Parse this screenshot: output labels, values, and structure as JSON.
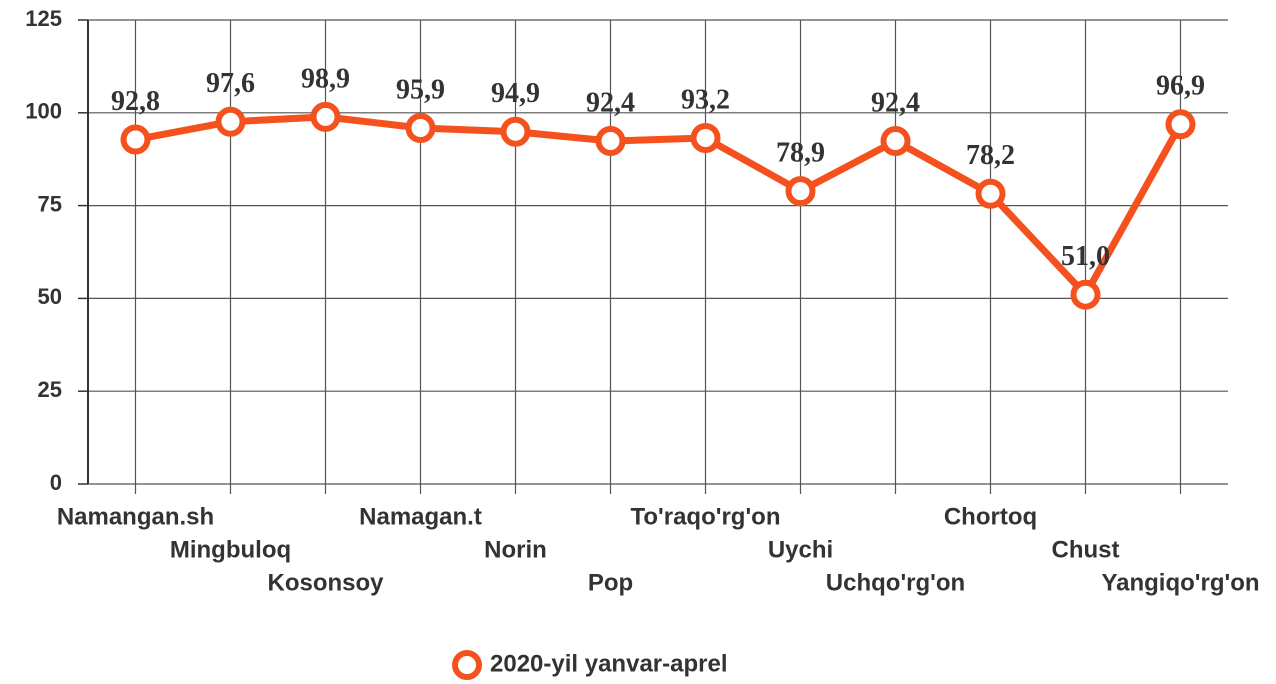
{
  "chart_data": {
    "type": "line",
    "categories": [
      "Namangan.sh",
      "Mingbuloq",
      "Kosonsoy",
      "Namagan.t",
      "Norin",
      "Pop",
      "To'raqo'rg'on",
      "Uychi",
      "Uchqo'rg'on",
      "Chortoq",
      "Chust",
      "Yangiqo'rg'on"
    ],
    "series": [
      {
        "name": "2020-yil yanvar-aprel",
        "color": "#f4511e",
        "values": [
          92.8,
          97.6,
          98.9,
          95.9,
          94.9,
          92.4,
          93.2,
          78.9,
          92.4,
          78.2,
          51.0,
          96.9
        ],
        "value_labels": [
          "92,8",
          "97,6",
          "98,9",
          "95,9",
          "94,9",
          "92,4",
          "93,2",
          "78,9",
          "92,4",
          "78,2",
          "51,0",
          "96,9"
        ]
      }
    ],
    "ylim": [
      0,
      125
    ],
    "yticks": [
      0,
      25,
      50,
      75,
      100,
      125
    ],
    "grid": true,
    "legend": "bottom"
  }
}
